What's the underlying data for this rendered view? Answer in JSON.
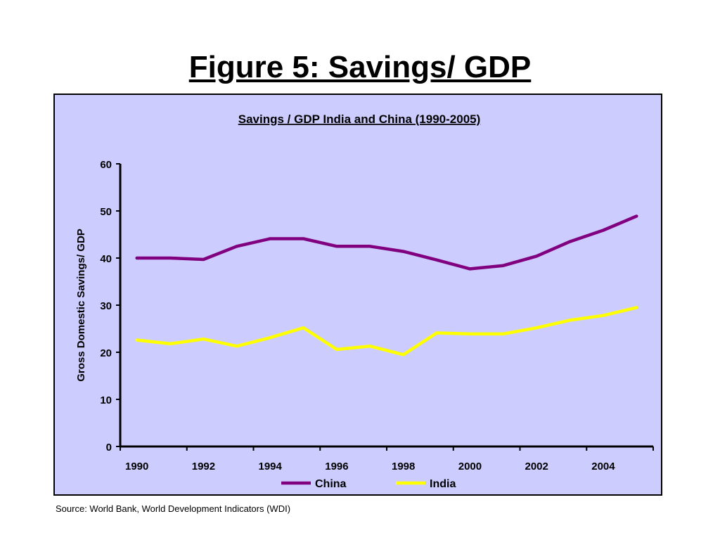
{
  "slide": {
    "title": "Figure 5: Savings/ GDP",
    "source": "Source: World Bank, World Development Indicators (WDI)"
  },
  "colors": {
    "plot_background": "#ccccff",
    "china": "#800080",
    "india": "#ffff00"
  },
  "chart_data": {
    "type": "line",
    "title": "Savings / GDP India and China (1990-2005)",
    "xlabel": "",
    "ylabel": "Gross Domestic Savings/ GDP",
    "x": [
      1990,
      1991,
      1992,
      1993,
      1994,
      1995,
      1996,
      1997,
      1998,
      1999,
      2000,
      2001,
      2002,
      2003,
      2004,
      2005
    ],
    "x_tick_labels": [
      "1990",
      "1992",
      "1994",
      "1996",
      "1998",
      "2000",
      "2002",
      "2004"
    ],
    "ylim": [
      0,
      60
    ],
    "y_ticks": [
      0,
      10,
      20,
      30,
      40,
      50,
      60
    ],
    "grid": false,
    "legend": "bottom",
    "series": [
      {
        "name": "China",
        "color": "#800080",
        "values": [
          40.0,
          40.0,
          39.7,
          42.5,
          44.1,
          44.1,
          42.5,
          42.5,
          41.4,
          39.6,
          37.7,
          38.4,
          40.4,
          43.5,
          45.9,
          48.9
        ]
      },
      {
        "name": "India",
        "color": "#ffff00",
        "values": [
          22.6,
          21.8,
          22.8,
          21.3,
          23.1,
          25.2,
          20.6,
          21.3,
          19.5,
          24.1,
          23.9,
          23.9,
          25.2,
          26.8,
          27.8,
          29.5
        ]
      }
    ]
  }
}
